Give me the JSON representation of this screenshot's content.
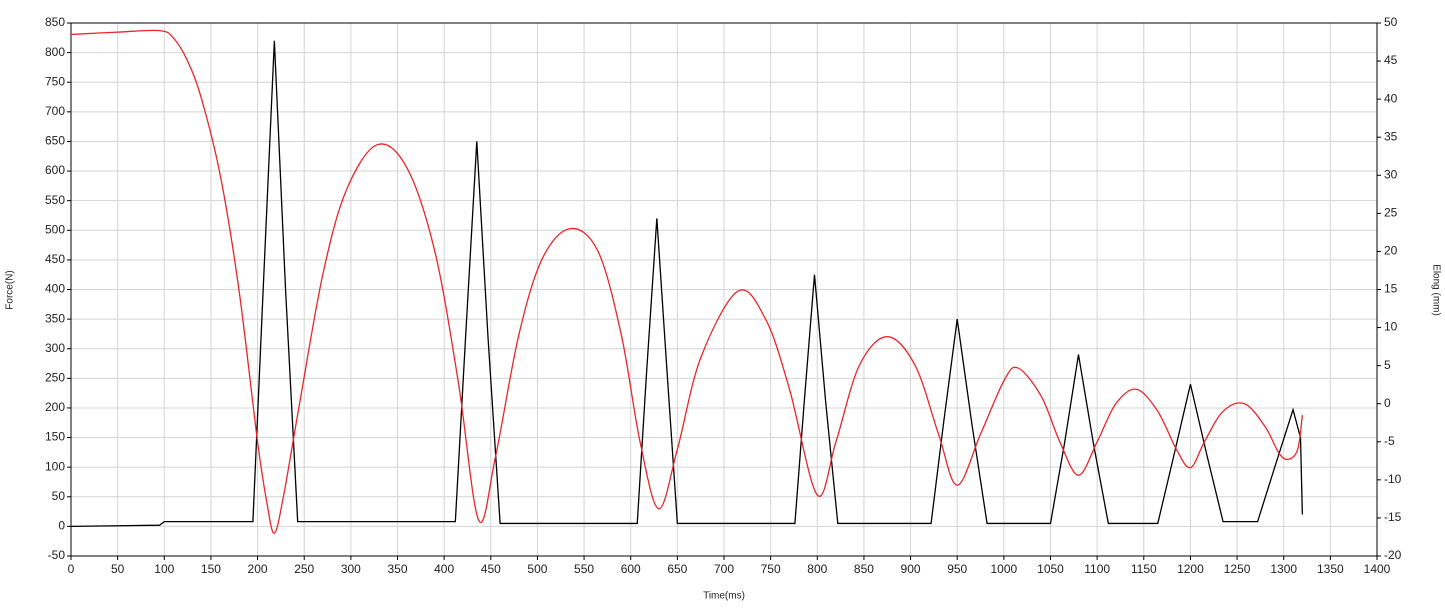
{
  "chart_data": {
    "type": "line",
    "x_label": "Time(ms)",
    "y_label": "Force(N)",
    "y2_label": "Elong (mm)",
    "xlim": [
      0,
      1400
    ],
    "xticks": [
      0,
      50,
      100,
      150,
      200,
      250,
      300,
      350,
      400,
      450,
      500,
      550,
      600,
      650,
      700,
      750,
      800,
      850,
      900,
      950,
      1000,
      1050,
      1100,
      1150,
      1200,
      1250,
      1300,
      1350,
      1400
    ],
    "ylim": [
      -50,
      850
    ],
    "yticks": [
      -50,
      0,
      50,
      100,
      150,
      200,
      250,
      300,
      350,
      400,
      450,
      500,
      550,
      600,
      650,
      700,
      750,
      800,
      850
    ],
    "y2lim": [
      -20,
      50
    ],
    "y2ticks": [
      -20,
      -15,
      -10,
      -5,
      0,
      5,
      10,
      15,
      20,
      25,
      30,
      35,
      40,
      45,
      50
    ],
    "grid": true,
    "series": [
      {
        "color": "#000000",
        "smooth": false,
        "x": [
          0,
          95,
          100,
          195,
          206,
          218,
          230,
          243,
          412,
          423,
          435,
          447,
          460,
          607,
          617,
          628,
          639,
          650,
          776,
          786,
          797,
          809,
          822,
          922,
          935,
          950,
          966,
          982,
          1050,
          1065,
          1080,
          1096,
          1112,
          1165,
          1182,
          1200,
          1218,
          1235,
          1272,
          1290,
          1310,
          1318,
          1320
        ],
        "values": [
          0,
          2,
          8,
          8,
          400,
          820,
          400,
          8,
          8,
          320,
          650,
          320,
          5,
          5,
          260,
          520,
          260,
          5,
          5,
          210,
          425,
          210,
          5,
          5,
          170,
          350,
          170,
          5,
          5,
          140,
          290,
          140,
          5,
          5,
          118,
          240,
          118,
          8,
          8,
          98,
          197,
          150,
          20
        ]
      },
      {
        "color": "#e8262a",
        "axis": "y2",
        "smooth": true,
        "x": [
          0,
          50,
          95,
          110,
          125,
          140,
          160,
          180,
          200,
          210,
          218,
          228,
          245,
          270,
          295,
          328,
          360,
          390,
          415,
          437,
          455,
          480,
          505,
          535,
          565,
          590,
          610,
          630,
          650,
          675,
          715,
          745,
          770,
          800,
          820,
          845,
          875,
          905,
          930,
          950,
          975,
          1000,
          1015,
          1040,
          1060,
          1080,
          1100,
          1120,
          1142,
          1165,
          1185,
          1200,
          1215,
          1235,
          1258,
          1280,
          1295,
          1305,
          1315,
          1320
        ],
        "values": [
          48.5,
          48.8,
          49,
          48,
          45,
          40,
          30,
          15,
          -5,
          -13,
          -17,
          -12,
          0,
          17,
          28,
          34,
          31,
          20,
          3,
          -15.3,
          -7,
          9,
          19,
          23,
          20,
          9,
          -5,
          -13.8,
          -6,
          6,
          14.8,
          11,
          2,
          -12,
          -5,
          5,
          8.8,
          5,
          -4,
          -10.7,
          -4,
          3,
          4.7,
          1,
          -5,
          -9.4,
          -5,
          0,
          1.9,
          -1,
          -6,
          -8.4,
          -5,
          -1,
          0,
          -3,
          -6.5,
          -7.3,
          -6,
          -1.5
        ]
      }
    ]
  }
}
